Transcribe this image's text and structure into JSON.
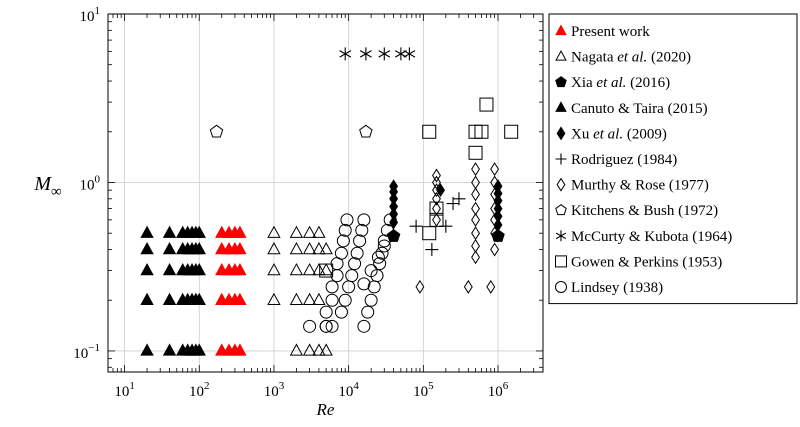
{
  "chart_data": {
    "type": "scatter",
    "xlabel": "Re",
    "ylabel": "M∞",
    "xscale": "log",
    "yscale": "log",
    "xlim": [
      6,
      4000000
    ],
    "ylim": [
      0.075,
      10
    ],
    "grid": true,
    "legend_position": "right, outside",
    "x_ticks": [
      {
        "value": 10,
        "base": "10",
        "exp": "1"
      },
      {
        "value": 100,
        "base": "10",
        "exp": "2"
      },
      {
        "value": 1000,
        "base": "10",
        "exp": "3"
      },
      {
        "value": 10000,
        "base": "10",
        "exp": "4"
      },
      {
        "value": 100000,
        "base": "10",
        "exp": "5"
      },
      {
        "value": 1000000,
        "base": "10",
        "exp": "6"
      }
    ],
    "y_ticks": [
      {
        "value": 0.1,
        "base": "10",
        "exp": "−1"
      },
      {
        "value": 1,
        "base": "10",
        "exp": "0"
      },
      {
        "value": 10,
        "base": "10",
        "exp": "1"
      }
    ],
    "series": [
      {
        "name": "Present work",
        "marker": "triangle",
        "filled": true,
        "color": "#ff0000",
        "points": [
          [
            200,
            0.1
          ],
          [
            250,
            0.1
          ],
          [
            300,
            0.1
          ],
          [
            350,
            0.1
          ],
          [
            200,
            0.2
          ],
          [
            250,
            0.2
          ],
          [
            300,
            0.2
          ],
          [
            350,
            0.2
          ],
          [
            200,
            0.3
          ],
          [
            250,
            0.3
          ],
          [
            300,
            0.3
          ],
          [
            350,
            0.3
          ],
          [
            200,
            0.4
          ],
          [
            250,
            0.4
          ],
          [
            300,
            0.4
          ],
          [
            350,
            0.4
          ],
          [
            200,
            0.5
          ],
          [
            250,
            0.5
          ],
          [
            300,
            0.5
          ],
          [
            350,
            0.5
          ]
        ]
      },
      {
        "name": "Nagata et al. (2020)",
        "marker": "triangle",
        "filled": false,
        "color": "#000000",
        "points": [
          [
            1000,
            0.3
          ],
          [
            1000,
            0.4
          ],
          [
            1000,
            0.5
          ],
          [
            1000,
            0.2
          ],
          [
            2000,
            0.2
          ],
          [
            2000,
            0.3
          ],
          [
            2000,
            0.4
          ],
          [
            2000,
            0.5
          ],
          [
            2000,
            0.1
          ],
          [
            3000,
            0.2
          ],
          [
            3000,
            0.3
          ],
          [
            3000,
            0.4
          ],
          [
            3000,
            0.5
          ],
          [
            3000,
            0.1
          ],
          [
            4000,
            0.2
          ],
          [
            4000,
            0.3
          ],
          [
            4000,
            0.4
          ],
          [
            4000,
            0.5
          ],
          [
            4000,
            0.1
          ],
          [
            5000,
            0.3
          ],
          [
            5000,
            0.4
          ],
          [
            5000,
            0.1
          ]
        ]
      },
      {
        "name": "Xia et al. (2016)",
        "marker": "pentagon",
        "filled": true,
        "color": "#000000",
        "points": [
          [
            40000,
            0.48
          ],
          [
            1000000,
            0.48
          ]
        ]
      },
      {
        "name": "Canuto & Taira (2015)",
        "marker": "triangle",
        "filled": true,
        "color": "#000000",
        "points": [
          [
            20,
            0.1
          ],
          [
            20,
            0.2
          ],
          [
            20,
            0.3
          ],
          [
            20,
            0.4
          ],
          [
            20,
            0.5
          ],
          [
            40,
            0.1
          ],
          [
            40,
            0.2
          ],
          [
            40,
            0.3
          ],
          [
            40,
            0.4
          ],
          [
            40,
            0.5
          ],
          [
            60,
            0.1
          ],
          [
            60,
            0.2
          ],
          [
            60,
            0.3
          ],
          [
            60,
            0.4
          ],
          [
            60,
            0.5
          ],
          [
            70,
            0.1
          ],
          [
            70,
            0.2
          ],
          [
            70,
            0.3
          ],
          [
            70,
            0.4
          ],
          [
            70,
            0.5
          ],
          [
            80,
            0.1
          ],
          [
            80,
            0.2
          ],
          [
            80,
            0.3
          ],
          [
            80,
            0.4
          ],
          [
            80,
            0.5
          ],
          [
            90,
            0.1
          ],
          [
            90,
            0.2
          ],
          [
            90,
            0.3
          ],
          [
            90,
            0.4
          ],
          [
            90,
            0.5
          ],
          [
            100,
            0.1
          ],
          [
            100,
            0.2
          ],
          [
            100,
            0.3
          ],
          [
            100,
            0.4
          ],
          [
            100,
            0.5
          ]
        ]
      },
      {
        "name": "Xu et al. (2009)",
        "marker": "diamond",
        "filled": true,
        "color": "#000000",
        "points": [
          [
            40000,
            0.58
          ],
          [
            40000,
            0.65
          ],
          [
            40000,
            0.72
          ],
          [
            40000,
            0.8
          ],
          [
            40000,
            0.88
          ],
          [
            40000,
            0.95
          ],
          [
            170000,
            0.9
          ],
          [
            1000000,
            0.56
          ],
          [
            1000000,
            0.63
          ],
          [
            1000000,
            0.7
          ],
          [
            1000000,
            0.78
          ],
          [
            1000000,
            0.86
          ],
          [
            1000000,
            0.95
          ]
        ]
      },
      {
        "name": "Rodriguez (1984)",
        "marker": "plus",
        "filled": false,
        "color": "#000000",
        "points": [
          [
            80000,
            0.55
          ],
          [
            130000,
            0.4
          ],
          [
            200000,
            0.55
          ],
          [
            250000,
            0.75
          ],
          [
            300000,
            0.8
          ]
        ]
      },
      {
        "name": "Murthy & Rose (1977)",
        "marker": "diamond",
        "filled": false,
        "color": "#000000",
        "points": [
          [
            90000,
            0.24
          ],
          [
            150000,
            1.1
          ],
          [
            150000,
            1.0
          ],
          [
            150000,
            0.9
          ],
          [
            150000,
            0.8
          ],
          [
            150000,
            0.7
          ],
          [
            150000,
            0.6
          ],
          [
            400000,
            0.24
          ],
          [
            500000,
            1.2
          ],
          [
            500000,
            1.0
          ],
          [
            500000,
            0.85
          ],
          [
            500000,
            0.7
          ],
          [
            500000,
            0.6
          ],
          [
            500000,
            0.5
          ],
          [
            500000,
            0.42
          ],
          [
            500000,
            0.36
          ],
          [
            800000,
            0.24
          ],
          [
            900000,
            1.2
          ],
          [
            900000,
            1.0
          ],
          [
            900000,
            0.85
          ],
          [
            900000,
            0.7
          ],
          [
            900000,
            0.6
          ],
          [
            900000,
            0.5
          ],
          [
            900000,
            0.4
          ]
        ]
      },
      {
        "name": "Kitchens & Bush (1972)",
        "marker": "pentagon",
        "filled": false,
        "color": "#000000",
        "points": [
          [
            170,
            2.0
          ],
          [
            17000,
            2.0
          ]
        ]
      },
      {
        "name": "McCurty & Kubota (1964)",
        "marker": "star",
        "filled": false,
        "color": "#000000",
        "points": [
          [
            9000,
            5.8
          ],
          [
            17000,
            5.8
          ],
          [
            30000,
            5.8
          ],
          [
            50000,
            5.8
          ],
          [
            65000,
            5.8
          ]
        ]
      },
      {
        "name": "Gowen & Perkins (1953)",
        "marker": "square",
        "filled": false,
        "color": "#000000",
        "points": [
          [
            5000,
            0.3
          ],
          [
            120000,
            0.5
          ],
          [
            150000,
            0.6
          ],
          [
            150000,
            0.7
          ],
          [
            120000,
            2.0
          ],
          [
            500000,
            2.0
          ],
          [
            600000,
            2.0
          ],
          [
            700000,
            2.9
          ],
          [
            1500000,
            2.0
          ],
          [
            500000,
            1.5
          ]
        ]
      },
      {
        "name": "Lindsey (1938)",
        "marker": "circle",
        "filled": false,
        "color": "#000000",
        "points": [
          [
            3000,
            0.14
          ],
          [
            5000,
            0.14
          ],
          [
            5000,
            0.17
          ],
          [
            6000,
            0.2
          ],
          [
            6000,
            0.24
          ],
          [
            7000,
            0.28
          ],
          [
            7000,
            0.33
          ],
          [
            8000,
            0.38
          ],
          [
            8500,
            0.45
          ],
          [
            9000,
            0.52
          ],
          [
            9500,
            0.6
          ],
          [
            5000,
            0.14
          ],
          [
            6000,
            0.14
          ],
          [
            8000,
            0.17
          ],
          [
            9000,
            0.2
          ],
          [
            10000,
            0.24
          ],
          [
            11000,
            0.28
          ],
          [
            12000,
            0.33
          ],
          [
            13000,
            0.38
          ],
          [
            14000,
            0.45
          ],
          [
            15000,
            0.52
          ],
          [
            16000,
            0.6
          ],
          [
            16000,
            0.14
          ],
          [
            18000,
            0.17
          ],
          [
            20000,
            0.2
          ],
          [
            22000,
            0.24
          ],
          [
            24000,
            0.28
          ],
          [
            26000,
            0.33
          ],
          [
            28000,
            0.38
          ],
          [
            30000,
            0.45
          ],
          [
            33000,
            0.52
          ],
          [
            36000,
            0.6
          ],
          [
            16000,
            0.25
          ],
          [
            20000,
            0.3
          ],
          [
            25000,
            0.36
          ],
          [
            30000,
            0.42
          ]
        ]
      }
    ]
  }
}
